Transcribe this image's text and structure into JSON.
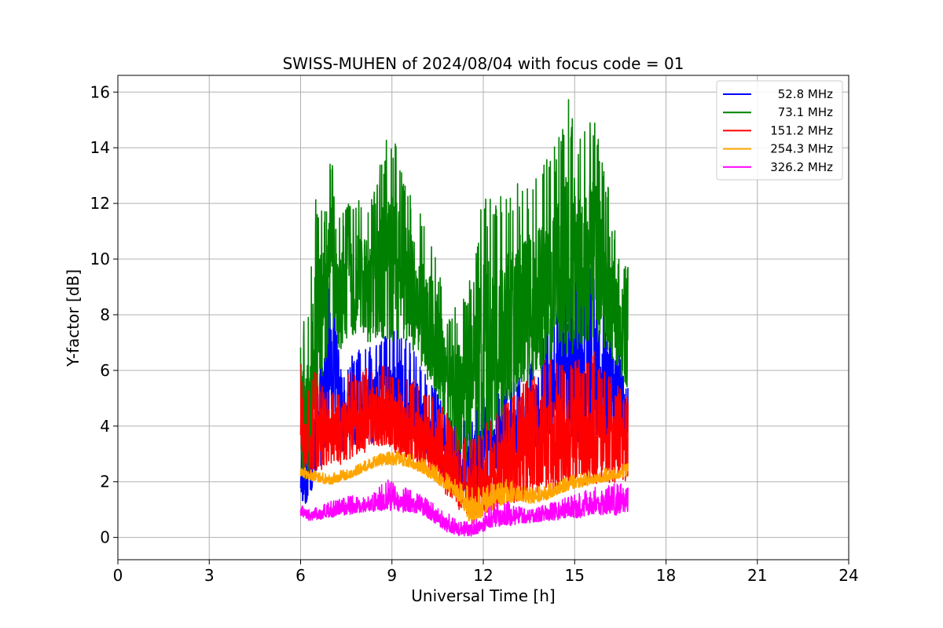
{
  "chart_data": {
    "type": "line",
    "title": "SWISS-MUHEN of 2024/08/04 with focus code = 01",
    "xlabel": "Universal Time [h]",
    "ylabel": "Y-factor [dB]",
    "xlim": [
      0,
      24
    ],
    "ylim": [
      -0.8,
      16.6
    ],
    "xticks": [
      0,
      3,
      6,
      9,
      12,
      15,
      18,
      21,
      24
    ],
    "yticks": [
      0,
      2,
      4,
      6,
      8,
      10,
      12,
      14,
      16
    ],
    "grid": true,
    "legend_position": "top-right",
    "series": [
      {
        "name": "52.8 MHz",
        "color": "#0000ff",
        "x": [
          6.0,
          6.2,
          6.5,
          6.8,
          7.0,
          7.3,
          7.6,
          8.0,
          8.4,
          8.8,
          9.2,
          9.6,
          10.0,
          10.4,
          10.8,
          11.2,
          11.6,
          12.0,
          12.4,
          12.8,
          13.2,
          13.6,
          14.0,
          14.4,
          14.8,
          15.2,
          15.6,
          16.0,
          16.4,
          16.75
        ],
        "lo": [
          1.0,
          1.1,
          2.0,
          3.0,
          4.5,
          2.8,
          3.0,
          3.5,
          3.4,
          3.6,
          3.4,
          3.3,
          3.0,
          2.6,
          2.0,
          1.6,
          1.4,
          1.8,
          2.2,
          2.6,
          2.9,
          3.2,
          3.3,
          3.4,
          3.4,
          3.4,
          3.5,
          3.5,
          3.8,
          3.6
        ],
        "hi": [
          5.3,
          3.0,
          6.0,
          9.0,
          10.0,
          6.0,
          6.5,
          7.0,
          6.8,
          7.5,
          7.6,
          7.0,
          6.0,
          5.5,
          4.5,
          4.0,
          4.5,
          5.0,
          5.2,
          5.5,
          5.8,
          6.5,
          7.5,
          8.5,
          9.8,
          10.2,
          9.5,
          9.0,
          8.5,
          5.5
        ]
      },
      {
        "name": "73.1 MHz",
        "color": "#008000",
        "x": [
          6.0,
          6.2,
          6.5,
          6.8,
          7.0,
          7.3,
          7.6,
          8.0,
          8.4,
          8.8,
          9.2,
          9.6,
          10.0,
          10.4,
          10.8,
          11.2,
          11.6,
          12.0,
          12.4,
          12.8,
          13.2,
          13.6,
          14.0,
          14.4,
          14.8,
          15.2,
          15.6,
          16.0,
          16.4,
          16.75
        ],
        "lo": [
          2.0,
          1.5,
          4.5,
          6.0,
          7.5,
          6.5,
          6.8,
          7.2,
          6.8,
          7.0,
          7.0,
          6.8,
          6.0,
          5.2,
          4.0,
          2.8,
          2.5,
          3.0,
          3.8,
          4.5,
          5.2,
          5.5,
          5.8,
          6.2,
          6.5,
          6.8,
          7.0,
          6.8,
          6.0,
          5.0
        ],
        "hi": [
          7.5,
          8.0,
          12.2,
          11.8,
          13.9,
          11.5,
          12.5,
          12.2,
          12.5,
          14.3,
          14.2,
          12.5,
          11.5,
          10.8,
          8.0,
          8.5,
          9.5,
          12.5,
          12.0,
          12.8,
          13.0,
          12.8,
          13.5,
          14.2,
          15.8,
          14.5,
          15.2,
          13.5,
          10.5,
          9.8
        ]
      },
      {
        "name": "151.2 MHz",
        "color": "#ff0000",
        "x": [
          6.0,
          6.2,
          6.5,
          6.8,
          7.0,
          7.3,
          7.6,
          8.0,
          8.4,
          8.8,
          9.2,
          9.6,
          10.0,
          10.4,
          10.8,
          11.2,
          11.6,
          12.0,
          12.4,
          12.8,
          13.2,
          13.6,
          14.0,
          14.4,
          14.8,
          15.2,
          15.6,
          16.0,
          16.4,
          16.75
        ],
        "lo": [
          2.2,
          2.0,
          2.3,
          2.5,
          2.6,
          2.6,
          2.8,
          3.0,
          3.2,
          3.2,
          3.0,
          2.8,
          2.4,
          2.0,
          1.5,
          1.0,
          0.6,
          0.8,
          1.0,
          1.2,
          1.3,
          1.5,
          1.6,
          1.7,
          1.8,
          1.8,
          1.9,
          2.0,
          1.9,
          2.0
        ],
        "hi": [
          6.5,
          5.5,
          6.0,
          5.2,
          5.5,
          5.5,
          6.0,
          6.0,
          6.2,
          6.2,
          6.0,
          5.8,
          5.5,
          5.0,
          4.5,
          3.8,
          3.5,
          4.0,
          4.5,
          5.0,
          5.5,
          5.8,
          6.5,
          6.8,
          6.2,
          6.5,
          6.8,
          6.0,
          5.5,
          5.2
        ]
      },
      {
        "name": "254.3 MHz",
        "color": "#ffa500",
        "x": [
          6.0,
          6.2,
          6.5,
          6.8,
          7.0,
          7.3,
          7.6,
          8.0,
          8.4,
          8.8,
          9.2,
          9.6,
          10.0,
          10.4,
          10.8,
          11.2,
          11.6,
          12.0,
          12.4,
          12.8,
          13.2,
          13.6,
          14.0,
          14.4,
          14.8,
          15.2,
          15.6,
          16.0,
          16.4,
          16.75
        ],
        "lo": [
          2.2,
          2.1,
          2.0,
          1.9,
          1.9,
          2.0,
          2.1,
          2.3,
          2.5,
          2.6,
          2.6,
          2.5,
          2.3,
          2.0,
          1.7,
          1.3,
          0.4,
          0.8,
          1.0,
          1.2,
          1.3,
          1.2,
          1.3,
          1.5,
          1.7,
          1.8,
          1.9,
          2.0,
          2.1,
          2.2
        ],
        "hi": [
          2.6,
          2.5,
          2.4,
          2.3,
          2.3,
          2.4,
          2.5,
          2.7,
          2.9,
          3.1,
          3.1,
          3.0,
          2.9,
          2.6,
          2.3,
          2.0,
          1.8,
          1.9,
          2.0,
          2.1,
          1.9,
          1.8,
          1.9,
          2.0,
          2.2,
          2.3,
          2.4,
          2.5,
          2.6,
          2.7
        ]
      },
      {
        "name": "326.2 MHz",
        "color": "#ff00ff",
        "x": [
          6.0,
          6.2,
          6.5,
          6.8,
          7.0,
          7.3,
          7.6,
          8.0,
          8.4,
          8.8,
          9.2,
          9.6,
          10.0,
          10.4,
          10.8,
          11.2,
          11.6,
          12.0,
          12.4,
          12.8,
          13.2,
          13.6,
          14.0,
          14.4,
          14.8,
          15.2,
          15.6,
          16.0,
          16.4,
          16.75
        ],
        "lo": [
          0.8,
          0.6,
          0.6,
          0.7,
          0.7,
          0.8,
          0.8,
          0.9,
          0.9,
          1.0,
          0.9,
          0.9,
          0.8,
          0.5,
          0.2,
          0.05,
          0.05,
          0.2,
          0.4,
          0.4,
          0.5,
          0.5,
          0.6,
          0.6,
          0.7,
          0.7,
          0.8,
          0.8,
          0.8,
          0.9
        ],
        "hi": [
          1.2,
          1.0,
          1.1,
          1.2,
          1.3,
          1.4,
          1.5,
          1.5,
          1.6,
          2.1,
          1.9,
          1.7,
          1.5,
          1.2,
          0.9,
          0.6,
          0.6,
          0.9,
          1.3,
          1.3,
          1.1,
          1.0,
          1.2,
          1.3,
          1.5,
          1.6,
          1.8,
          1.8,
          2.0,
          1.8
        ]
      }
    ]
  }
}
